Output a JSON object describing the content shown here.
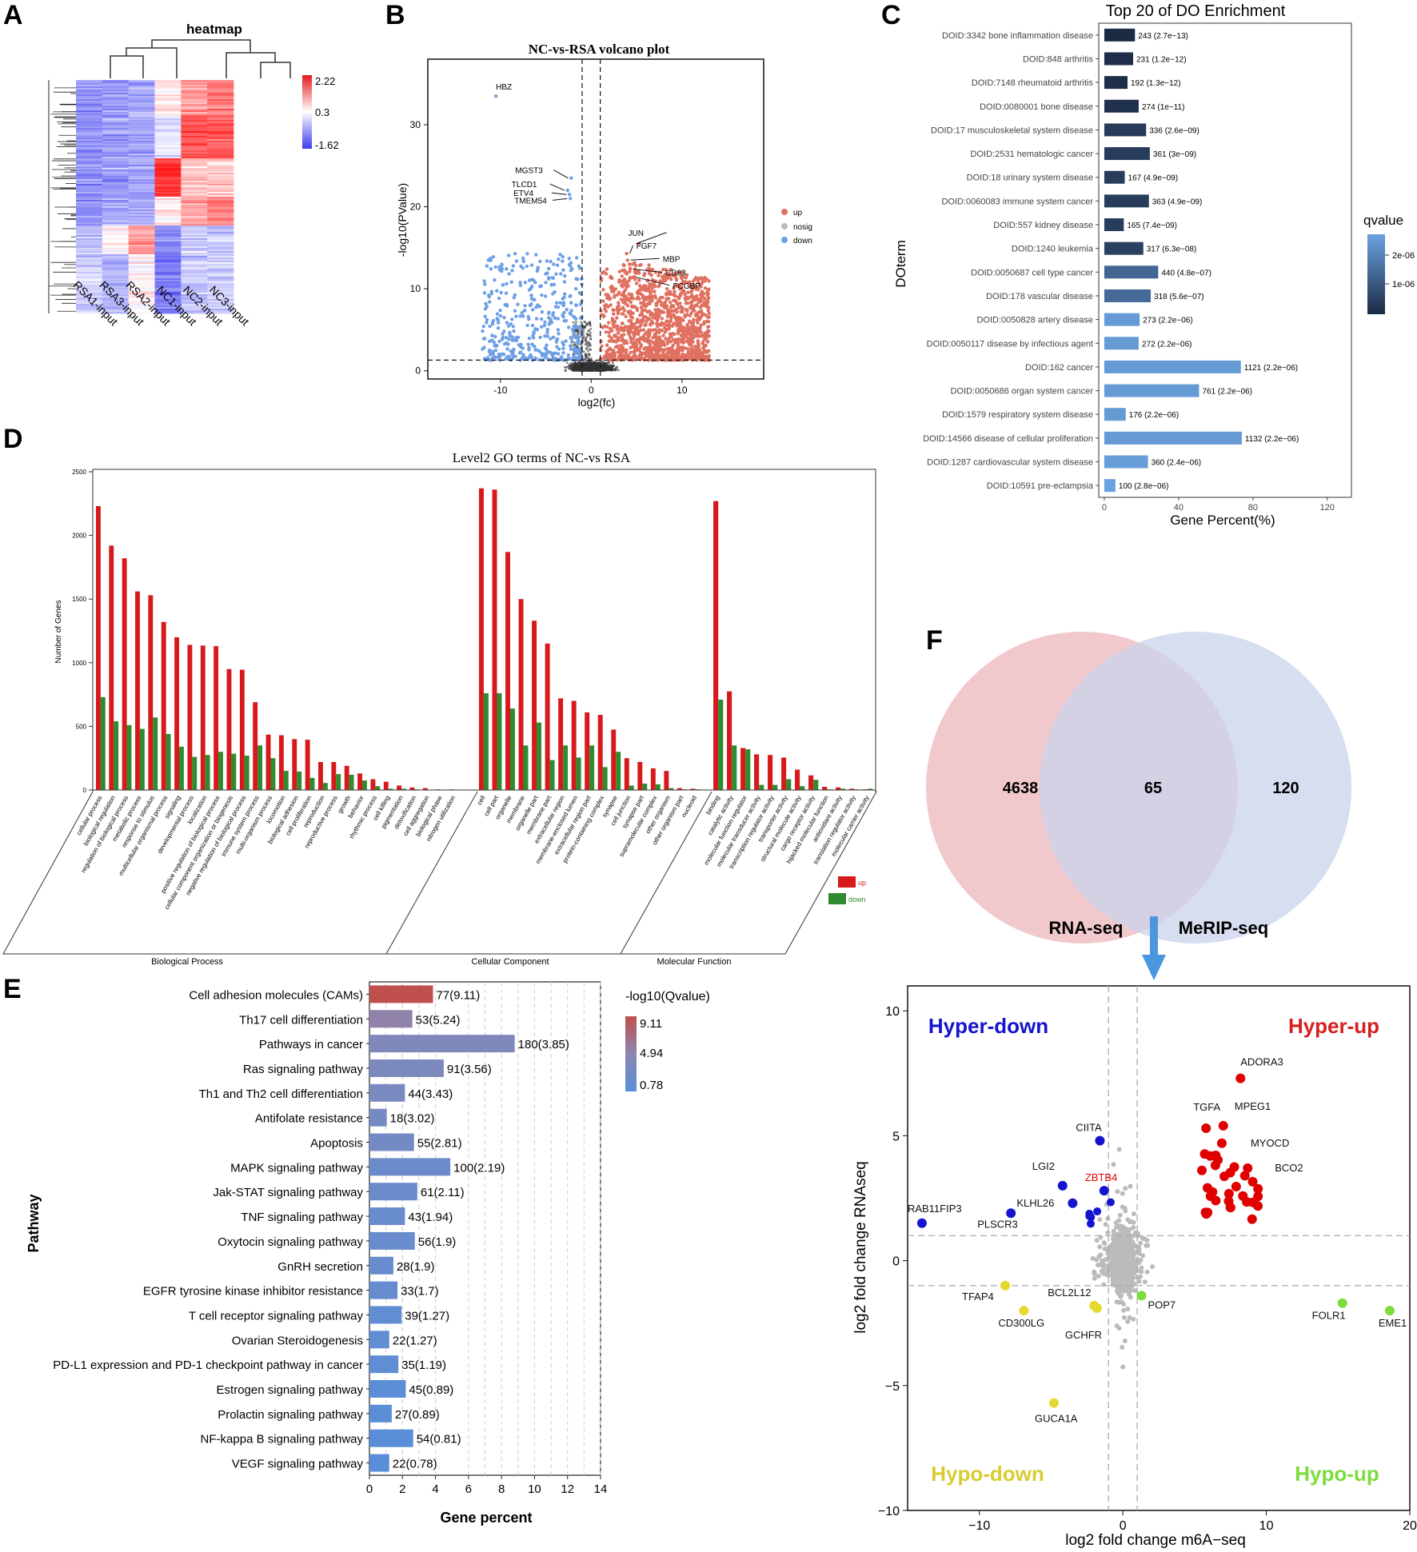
{
  "panel_labels": [
    "A",
    "B",
    "C",
    "D",
    "E",
    "F"
  ],
  "colors": {
    "heat_high": "#e41a1c",
    "heat_mid": "#ffffff",
    "heat_low": "#3b3bf0",
    "volcano_up": "#e07060",
    "volcano_down": "#6d9fe6",
    "volcano_nosig": "#333333",
    "do_dark": "#1c2a44",
    "do_light": "#6aa2e0",
    "go_up": "#d7191c",
    "go_down": "#2e8b2e",
    "kegg_high": "#c0504d",
    "kegg_low": "#5b8ed8",
    "venn_left": "#efc0c4",
    "venn_right": "#c8d3ea",
    "quad_hyper_up": "#e00000",
    "quad_hyper_down": "#1414d0",
    "quad_hypo_down": "#e5d830",
    "quad_hypo_up": "#7cdc3c",
    "quad_bg": "#bbbbbb"
  },
  "chart_data": [
    {
      "id": "A",
      "type": "heatmap",
      "title": "heatmap",
      "columns": [
        "RSA1-input",
        "RSA3-input",
        "RSA2-input",
        "NC1-input",
        "NC2-input",
        "NC3-input"
      ],
      "legend": {
        "max": "2.22",
        "mid": "0.3",
        "min": "-1.62"
      }
    },
    {
      "id": "B",
      "type": "scatter",
      "title": "NC-vs-RSA volcano plot",
      "xlabel": "log2(fc)",
      "ylabel": "-log10(PValue)",
      "xticks": [
        "-10",
        "0",
        "10"
      ],
      "yticks": [
        "0",
        "10",
        "20",
        "30"
      ],
      "xlim": [
        -18,
        19
      ],
      "ylim": [
        -1,
        38
      ],
      "vlines": [
        -1,
        1
      ],
      "hline": 1.3,
      "legend": [
        "up",
        "nosig",
        "down"
      ],
      "labels": [
        {
          "text": "HBZ",
          "x": -10.5,
          "y": 33.5
        },
        {
          "text": "MGST3",
          "x": -2.2,
          "y": 23.5
        },
        {
          "text": "TLCD1",
          "x": -2.6,
          "y": 22.0
        },
        {
          "text": "ETV4",
          "x": -2.4,
          "y": 21.5
        },
        {
          "text": "TMEM54",
          "x": -2.3,
          "y": 21.0
        },
        {
          "text": "JUN",
          "x": 5.3,
          "y": 15.5
        },
        {
          "text": "FGF7",
          "x": 3.9,
          "y": 14.3
        },
        {
          "text": "MBP",
          "x": 4.0,
          "y": 13.5
        },
        {
          "text": "CD83",
          "x": 4.3,
          "y": 12.4
        },
        {
          "text": "FCGBP",
          "x": 4.6,
          "y": 11.4
        }
      ]
    },
    {
      "id": "C",
      "type": "bar",
      "title": "Top 20 of DO Enrichment",
      "xlabel": "Gene Percent(%)",
      "ylabel": "DOterm",
      "xticks": [
        "0",
        "40",
        "80",
        "120"
      ],
      "xlim": [
        -3,
        133
      ],
      "legend_title": "qvalue",
      "legend_ticks": [
        "2e-06",
        "1e-06"
      ],
      "categories": [
        "DOID:3342 bone inflammation disease",
        "DOID:848 arthritis",
        "DOID:7148 rheumatoid arthritis",
        "DOID:0080001 bone disease",
        "DOID:17 musculoskeletal system disease",
        "DOID:2531 hematologic cancer",
        "DOID:18 urinary system disease",
        "DOID:0060083 immune system cancer",
        "DOID:557 kidney disease",
        "DOID:1240 leukemia",
        "DOID:0050687 cell type cancer",
        "DOID:178 vascular disease",
        "DOID:0050828 artery disease",
        "DOID:0050117 disease by infectious agent",
        "DOID:162 cancer",
        "DOID:0050686 organ system cancer",
        "DOID:1579 respiratory system disease",
        "DOID:14566 disease of cellular proliferation",
        "DOID:1287 cardiovascular system disease",
        "DOID:10591 pre-eclampsia"
      ],
      "values": [
        16.5,
        15.5,
        12.5,
        18.5,
        22.5,
        24.5,
        11,
        24,
        10.5,
        21,
        29,
        25,
        19,
        18.5,
        73.5,
        51,
        11.5,
        74,
        23.5,
        6
      ],
      "bar_labels": [
        "243 (2.7e−13)",
        "231 (1.2e−12)",
        "192 (1.3e−12)",
        "274 (1e−11)",
        "336 (2.6e−09)",
        "361 (3e−09)",
        "167 (4.9e−09)",
        "363 (4.9e−09)",
        "165 (7.4e−09)",
        "317 (6.3e−08)",
        "440 (4.8e−07)",
        "318 (5.6e−07)",
        "273 (2.2e−06)",
        "272 (2.2e−06)",
        "1121 (2.2e−06)",
        "761 (2.2e−06)",
        "176 (2.2e−06)",
        "1132 (2.2e−06)",
        "360 (2.4e−06)",
        "100 (2.8e−06)"
      ],
      "qvalues": [
        2.7e-13,
        1.2e-12,
        1.3e-12,
        1e-11,
        2.6e-09,
        3e-09,
        4.9e-09,
        4.9e-09,
        7.4e-09,
        6.3e-08,
        4.8e-07,
        5.6e-07,
        2.2e-06,
        2.2e-06,
        2.2e-06,
        2.2e-06,
        2.2e-06,
        2.2e-06,
        2.4e-06,
        2.8e-06
      ]
    },
    {
      "id": "D",
      "type": "bar",
      "title": "Level2 GO terms of NC-vs RSA",
      "ylabel": "Number of Genes",
      "yticks": [
        "0",
        "500",
        "1000",
        "1500",
        "2000",
        "2500"
      ],
      "ylim": [
        0,
        2500
      ],
      "legend": [
        "up",
        "down"
      ],
      "groups": [
        {
          "name": "Biological Process",
          "terms": [
            "cellular process",
            "biological regulation",
            "regulation of biological process",
            "metabolic process",
            "response to stimulus",
            "multicellular organismal process",
            "signaling",
            "developmental process",
            "localization",
            "positive regulation of biological process",
            "cellular component organization or biogenesis",
            "negative regulation of biological process",
            "immune system process",
            "multi-organism process",
            "locomotion",
            "biological adhesion",
            "cell proliferation",
            "reproduction",
            "reproductive process",
            "growth",
            "behavior",
            "rhythmic process",
            "cell killing",
            "pigmentation",
            "detoxification",
            "cell aggregation",
            "biological phase",
            "nitrogen utilization"
          ],
          "up": [
            2230,
            1920,
            1820,
            1560,
            1530,
            1320,
            1200,
            1140,
            1135,
            1130,
            950,
            945,
            690,
            435,
            430,
            400,
            395,
            220,
            220,
            190,
            130,
            85,
            65,
            35,
            20,
            15,
            5,
            5
          ],
          "down": [
            730,
            540,
            510,
            480,
            570,
            440,
            340,
            260,
            275,
            300,
            285,
            270,
            350,
            250,
            150,
            145,
            95,
            55,
            125,
            120,
            75,
            30,
            10,
            10,
            5,
            0,
            0,
            0
          ]
        },
        {
          "name": "Cellular Component",
          "terms": [
            "cell",
            "cell part",
            "organelle",
            "membrane",
            "organelle part",
            "membrane part",
            "extracellular region",
            "membrane-enclosed lumen",
            "extracellular region part",
            "protein-containing complex",
            "synapse",
            "cell junction",
            "synapse part",
            "supramolecular complex",
            "other organism",
            "other organism part",
            "nucleoid"
          ],
          "up": [
            2370,
            2360,
            1870,
            1500,
            1330,
            1150,
            720,
            700,
            610,
            590,
            475,
            250,
            220,
            170,
            150,
            15,
            10
          ],
          "down": [
            760,
            760,
            640,
            350,
            530,
            235,
            350,
            255,
            350,
            180,
            300,
            35,
            50,
            45,
            15,
            5,
            5
          ]
        },
        {
          "name": "Molecular Function",
          "terms": [
            "binding",
            "catalytic activity",
            "molecular function regulator",
            "molecular transducer activity",
            "transcription regulator activity",
            "transporter activity",
            "structural molecule activity",
            "cargo receptor activity",
            "hijacked molecular function",
            "antioxidant activity",
            "translation regulator activity",
            "molecular carrier activity"
          ],
          "up": [
            2270,
            775,
            330,
            280,
            275,
            255,
            160,
            115,
            25,
            20,
            10,
            5
          ],
          "down": [
            710,
            350,
            320,
            40,
            40,
            85,
            30,
            80,
            5,
            10,
            5,
            10
          ]
        }
      ]
    },
    {
      "id": "E",
      "type": "bar",
      "ylabel": "Pathway",
      "xlabel": "Gene percent",
      "xticks": [
        "0",
        "2",
        "4",
        "6",
        "8",
        "10",
        "12",
        "14"
      ],
      "xlim": [
        0,
        14
      ],
      "legend_title": "-log10(Qvalue)",
      "legend_ticks": [
        "9.11",
        "4.94",
        "0.78"
      ],
      "categories": [
        "Cell adhesion molecules (CAMs)",
        "Th17 cell differentiation",
        "Pathways in cancer",
        "Ras signaling pathway",
        "Th1 and Th2 cell differentiation",
        "Antifolate resistance",
        "Apoptosis",
        "MAPK signaling pathway",
        "Jak-STAT signaling pathway",
        "TNF signaling pathway",
        "Oxytocin signaling pathway",
        "GnRH secretion",
        "EGFR tyrosine kinase inhibitor resistance",
        "T cell receptor signaling pathway",
        "Ovarian Steroidogenesis",
        "PD-L1 expression and PD-1 checkpoint pathway in cancer",
        "Estrogen signaling pathway",
        "Prolactin signaling pathway",
        "NF-kappa B signaling pathway",
        "VEGF signaling pathway"
      ],
      "values": [
        3.85,
        2.6,
        8.8,
        4.5,
        2.15,
        1.05,
        2.7,
        4.9,
        2.9,
        2.15,
        2.75,
        1.45,
        1.7,
        1.95,
        1.2,
        1.75,
        2.2,
        1.35,
        2.65,
        1.2
      ],
      "bar_labels": [
        "77(9.11)",
        "53(5.24)",
        "180(3.85)",
        "91(3.56)",
        "44(3.43)",
        "18(3.02)",
        "55(2.81)",
        "100(2.19)",
        "61(2.11)",
        "43(1.94)",
        "56(1.9)",
        "28(1.9)",
        "33(1.7)",
        "39(1.27)",
        "22(1.27)",
        "35(1.19)",
        "45(0.89)",
        "27(0.89)",
        "54(0.81)",
        "22(0.78)"
      ],
      "qvalues": [
        9.11,
        5.24,
        3.85,
        3.56,
        3.43,
        3.02,
        2.81,
        2.19,
        2.11,
        1.94,
        1.9,
        1.9,
        1.7,
        1.27,
        1.27,
        1.19,
        0.89,
        0.89,
        0.81,
        0.78
      ]
    },
    {
      "id": "F-venn",
      "type": "venn",
      "sets": [
        "RNA-seq",
        "MeRIP-seq"
      ],
      "values": [
        "4638",
        "65",
        "120"
      ]
    },
    {
      "id": "F-quad",
      "type": "scatter",
      "xlabel": "log2 fold change m6A−seq",
      "ylabel": "log2 fold change RNAseq",
      "xticks": [
        "−10",
        "0",
        "10",
        "20"
      ],
      "yticks": [
        "−10",
        "−5",
        "0",
        "5",
        "10"
      ],
      "xlim": [
        -15,
        20
      ],
      "ylim": [
        -10,
        11
      ],
      "vlines": [
        -1,
        1
      ],
      "hlines": [
        -1,
        1
      ],
      "quadrants": [
        "Hyper-down",
        "Hyper-up",
        "Hypo-down",
        "Hypo-up"
      ],
      "labeled_points": [
        {
          "text": "ADORA3",
          "x": 8.2,
          "y": 7.3,
          "group": "up"
        },
        {
          "text": "TGFA",
          "x": 5.8,
          "y": 5.3,
          "group": "up"
        },
        {
          "text": "MPEG1",
          "x": 7.0,
          "y": 5.4,
          "group": "up"
        },
        {
          "text": "MYOCD",
          "x": 6.9,
          "y": 4.7,
          "group": "up"
        },
        {
          "text": "BCO2",
          "x": 8.7,
          "y": 3.7,
          "group": "up"
        },
        {
          "text": "CIITA",
          "x": -1.6,
          "y": 4.8,
          "group": "down"
        },
        {
          "text": "LGI2",
          "x": -4.2,
          "y": 3.0,
          "group": "down"
        },
        {
          "text": "ZBTB4",
          "x": -1.3,
          "y": 2.8,
          "group": "down"
        },
        {
          "text": "KLHL26",
          "x": -3.5,
          "y": 2.3,
          "group": "down"
        },
        {
          "text": "RAB11FIP3",
          "x": -14.0,
          "y": 1.5,
          "group": "down"
        },
        {
          "text": "PLSCR3",
          "x": -7.8,
          "y": 1.9,
          "group": "down"
        },
        {
          "text": "TFAP4",
          "x": -8.2,
          "y": -1.0,
          "group": "hypodown"
        },
        {
          "text": "CD300LG",
          "x": -6.9,
          "y": -2.0,
          "group": "hypodown"
        },
        {
          "text": "BCL2L12",
          "x": -2.0,
          "y": -1.8,
          "group": "hypodown"
        },
        {
          "text": "GCHFR",
          "x": -1.8,
          "y": -1.9,
          "group": "hypodown"
        },
        {
          "text": "GUCA1A",
          "x": -4.8,
          "y": -5.7,
          "group": "hypodown"
        },
        {
          "text": "POP7",
          "x": 1.3,
          "y": -1.4,
          "group": "hypoup"
        },
        {
          "text": "FOLR1",
          "x": 15.3,
          "y": -1.7,
          "group": "hypoup"
        },
        {
          "text": "EME1",
          "x": 18.6,
          "y": -2.0,
          "group": "hypoup"
        }
      ]
    }
  ]
}
